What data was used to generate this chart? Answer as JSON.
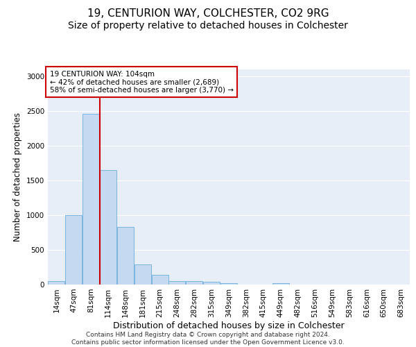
{
  "title1": "19, CENTURION WAY, COLCHESTER, CO2 9RG",
  "title2": "Size of property relative to detached houses in Colchester",
  "xlabel": "Distribution of detached houses by size in Colchester",
  "ylabel": "Number of detached properties",
  "categories": [
    "14sqm",
    "47sqm",
    "81sqm",
    "114sqm",
    "148sqm",
    "181sqm",
    "215sqm",
    "248sqm",
    "282sqm",
    "315sqm",
    "349sqm",
    "382sqm",
    "415sqm",
    "449sqm",
    "482sqm",
    "516sqm",
    "549sqm",
    "583sqm",
    "616sqm",
    "650sqm",
    "683sqm"
  ],
  "bar_values": [
    55,
    1000,
    2460,
    1650,
    830,
    295,
    140,
    55,
    55,
    40,
    25,
    0,
    0,
    25,
    0,
    0,
    0,
    0,
    0,
    0,
    0
  ],
  "bar_color": "#c5d9f0",
  "bar_edge_color": "#6aaee0",
  "vline_color": "#cc0000",
  "vline_x_index": 3,
  "annotation_text": "19 CENTURION WAY: 104sqm\n← 42% of detached houses are smaller (2,689)\n58% of semi-detached houses are larger (3,770) →",
  "annotation_box_color": "#ffffff",
  "annotation_box_edge": "#cc0000",
  "ylim": [
    0,
    3100
  ],
  "yticks": [
    0,
    500,
    1000,
    1500,
    2000,
    2500,
    3000
  ],
  "background_color": "#e8eef8",
  "grid_color": "#ffffff",
  "footer": "Contains HM Land Registry data © Crown copyright and database right 2024.\nContains public sector information licensed under the Open Government Licence v3.0.",
  "title1_fontsize": 11,
  "title2_fontsize": 10,
  "xlabel_fontsize": 9,
  "ylabel_fontsize": 8.5,
  "tick_fontsize": 7.5,
  "annotation_fontsize": 7.5,
  "footer_fontsize": 6.5
}
